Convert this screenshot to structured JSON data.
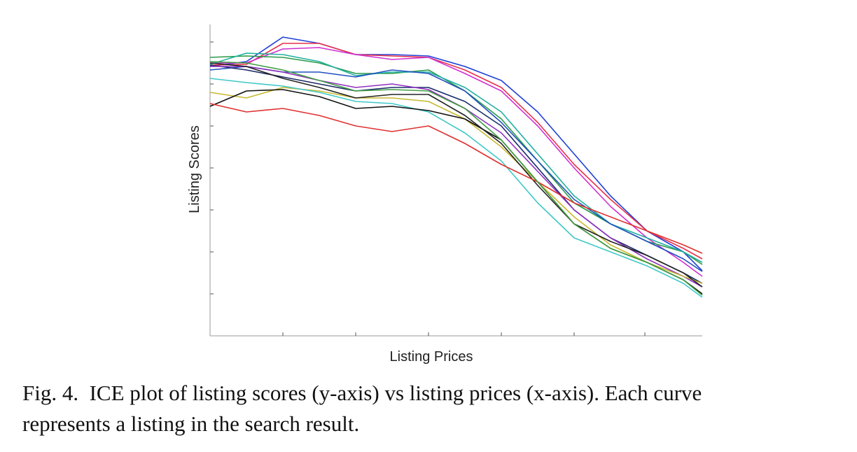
{
  "chart_data": {
    "type": "line",
    "xlabel": "Listing  Prices",
    "ylabel": "Listing  Scores",
    "xlim": [
      0,
      703
    ],
    "xticks": [
      104,
      208,
      312,
      416,
      520,
      621
    ],
    "ylim": [
      0,
      445
    ],
    "yticks": [
      60,
      120,
      180,
      240,
      300,
      360,
      420
    ],
    "grid": false,
    "x": [
      0,
      52,
      104,
      156,
      208,
      260,
      312,
      364,
      416,
      468,
      520,
      572,
      624,
      676,
      703
    ],
    "series": [
      {
        "color": "#1f3fd6",
        "values": [
          385,
          392,
          427,
          418,
          402,
          402,
          400,
          385,
          365,
          320,
          260,
          200,
          150,
          120,
          93
        ]
      },
      {
        "color": "#e8304a",
        "values": [
          387,
          388,
          418,
          418,
          402,
          400,
          398,
          380,
          355,
          305,
          245,
          195,
          150,
          125,
          110
        ]
      },
      {
        "color": "#d02fd0",
        "values": [
          390,
          390,
          410,
          412,
          402,
          395,
          398,
          375,
          350,
          300,
          240,
          185,
          140,
          105,
          85
        ]
      },
      {
        "color": "#2a9a4a",
        "values": [
          398,
          400,
          398,
          390,
          375,
          375,
          380,
          350,
          310,
          250,
          190,
          160,
          135,
          120,
          102
        ]
      },
      {
        "color": "#20b0a0",
        "values": [
          388,
          404,
          402,
          392,
          372,
          377,
          377,
          355,
          320,
          260,
          200,
          160,
          140,
          120,
          105
        ]
      },
      {
        "color": "#2050c0",
        "values": [
          380,
          385,
          377,
          377,
          370,
          380,
          375,
          350,
          305,
          250,
          195,
          160,
          135,
          110,
          92
        ]
      },
      {
        "color": "#1a2a6a",
        "values": [
          387,
          380,
          370,
          360,
          350,
          355,
          355,
          335,
          300,
          240,
          180,
          140,
          115,
          90,
          75
        ]
      },
      {
        "color": "#9030c0",
        "values": [
          385,
          385,
          377,
          365,
          355,
          360,
          352,
          325,
          290,
          235,
          180,
          140,
          110,
          85,
          70
        ]
      },
      {
        "color": "#c8b830",
        "values": [
          348,
          340,
          355,
          350,
          340,
          340,
          335,
          310,
          270,
          220,
          170,
          130,
          105,
          85,
          75
        ]
      },
      {
        "color": "#40c8c8",
        "values": [
          368,
          362,
          357,
          348,
          335,
          332,
          320,
          290,
          250,
          190,
          140,
          120,
          100,
          75,
          55
        ]
      },
      {
        "color": "#111111",
        "values": [
          328,
          350,
          352,
          342,
          325,
          328,
          322,
          310,
          280,
          220,
          160,
          125,
          105,
          80,
          60
        ]
      },
      {
        "color": "#222222",
        "values": [
          390,
          385,
          368,
          355,
          340,
          345,
          345,
          315,
          275,
          215,
          160,
          135,
          115,
          90,
          70
        ]
      },
      {
        "color": "#e03030",
        "values": [
          332,
          320,
          325,
          315,
          300,
          292,
          300,
          275,
          245,
          220,
          190,
          170,
          150,
          130,
          118
        ]
      },
      {
        "color": "#40a040",
        "values": [
          392,
          390,
          380,
          365,
          350,
          352,
          350,
          325,
          280,
          220,
          160,
          125,
          105,
          80,
          58
        ]
      }
    ]
  },
  "caption": [
    "Fig. 4.  ICE plot of listing scores (y-axis) vs listing prices (x-axis). Each curve",
    "represents a listing in the search result."
  ]
}
